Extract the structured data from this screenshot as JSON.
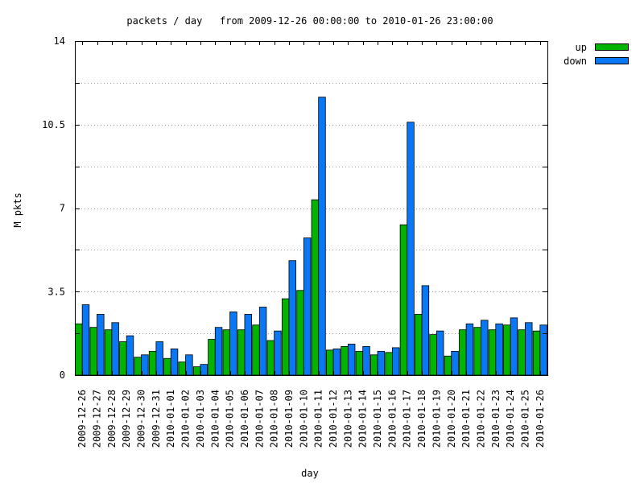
{
  "chart_data": {
    "type": "bar",
    "title": "packets / day   from 2009-12-26 00:00:00 to 2010-01-26 23:00:00",
    "xlabel": "day",
    "ylabel": "M pkts",
    "ylim": [
      0,
      14
    ],
    "yticks": [
      0,
      3.5,
      7,
      10.5,
      14
    ],
    "ytick_labels": [
      "0",
      "3.5",
      "7",
      "10.5",
      "14"
    ],
    "grid": true,
    "legend_position": "top-right",
    "categories": [
      "2009-12-26",
      "2009-12-27",
      "2009-12-28",
      "2009-12-29",
      "2009-12-30",
      "2009-12-31",
      "2010-01-01",
      "2010-01-02",
      "2010-01-03",
      "2010-01-04",
      "2010-01-05",
      "2010-01-06",
      "2010-01-07",
      "2010-01-08",
      "2010-01-09",
      "2010-01-10",
      "2010-01-11",
      "2010-01-12",
      "2010-01-13",
      "2010-01-14",
      "2010-01-15",
      "2010-01-16",
      "2010-01-17",
      "2010-01-18",
      "2010-01-19",
      "2010-01-20",
      "2010-01-21",
      "2010-01-22",
      "2010-01-23",
      "2010-01-24",
      "2010-01-25",
      "2010-01-26"
    ],
    "series": [
      {
        "name": "up",
        "color": "#00b400",
        "values": [
          2.15,
          2.0,
          1.9,
          1.4,
          0.75,
          1.0,
          0.7,
          0.55,
          0.35,
          1.5,
          1.9,
          1.9,
          2.1,
          1.45,
          3.2,
          3.55,
          7.35,
          1.05,
          1.2,
          1.0,
          0.85,
          0.95,
          6.3,
          2.55,
          1.7,
          0.8,
          1.9,
          2.0,
          1.9,
          2.1,
          1.9,
          1.85
        ]
      },
      {
        "name": "down",
        "color": "#0a78f5",
        "values": [
          2.95,
          2.55,
          2.2,
          1.65,
          0.85,
          1.4,
          1.1,
          0.85,
          0.45,
          2.0,
          2.65,
          2.55,
          2.85,
          1.85,
          4.8,
          5.75,
          11.65,
          1.1,
          1.3,
          1.2,
          1.0,
          1.15,
          10.6,
          3.75,
          1.85,
          1.0,
          2.15,
          2.3,
          2.15,
          2.4,
          2.2,
          2.1
        ]
      }
    ]
  }
}
